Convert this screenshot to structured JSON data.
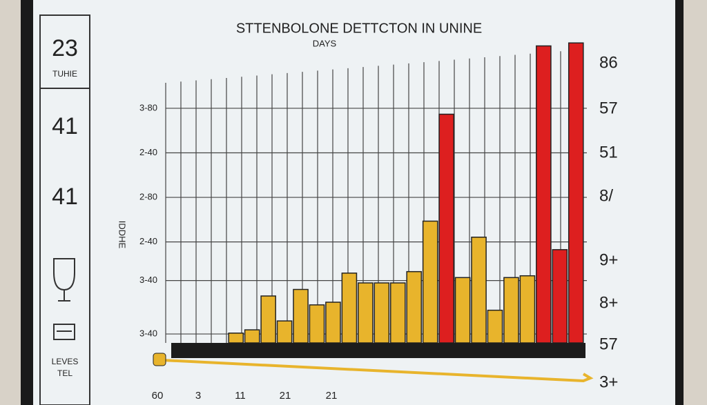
{
  "chart_data": {
    "type": "bar",
    "title": "STTENBOLONE DETTCTON IN UNINE",
    "subtitle": "DAYS",
    "y_label": "IDDHE",
    "categories": [
      null,
      null,
      null,
      null,
      null,
      null,
      null,
      null,
      null,
      null,
      null,
      null,
      null,
      null,
      null,
      null,
      null,
      null,
      null,
      null,
      null,
      null
    ],
    "values": [
      3.3,
      4.4,
      15.8,
      7.4,
      18,
      12.8,
      13.7,
      23.5,
      20.2,
      20.2,
      20.2,
      24,
      41,
      77,
      22,
      35.6,
      11,
      22,
      22.6,
      100,
      31.4,
      101
    ],
    "colors": [
      "#e8b42c",
      "#e8b42c",
      "#e8b42c",
      "#e8b42c",
      "#e8b42c",
      "#e8b42c",
      "#e8b42c",
      "#e8b42c",
      "#e8b42c",
      "#e8b42c",
      "#e8b42c",
      "#e8b42c",
      "#e8b42c",
      "#dd1f1f",
      "#e8b42c",
      "#e8b42c",
      "#e8b42c",
      "#e8b42c",
      "#e8b42c",
      "#dd1f1f",
      "#dd1f1f",
      "#dd1f1f"
    ],
    "ylim": [
      0,
      105
    ],
    "yticks": [
      {
        "value": 79,
        "label": "3-80"
      },
      {
        "value": 64,
        "label": "2-40"
      },
      {
        "value": 49,
        "label": "2-80"
      },
      {
        "value": 34,
        "label": "2-40"
      },
      {
        "value": 21,
        "label": "3-40"
      },
      {
        "value": 3,
        "label": "3-40"
      }
    ],
    "grid": true,
    "right_labels": [
      "86",
      "57",
      "51",
      "8/",
      "9+",
      "8+",
      "57",
      "3+"
    ],
    "x_labels": [
      "60",
      "3",
      "11",
      "21",
      "21"
    ]
  },
  "side_panel": {
    "items": [
      "23",
      "TUHIE",
      "41",
      "41"
    ],
    "footer": [
      "LEVES",
      "TEL"
    ]
  }
}
